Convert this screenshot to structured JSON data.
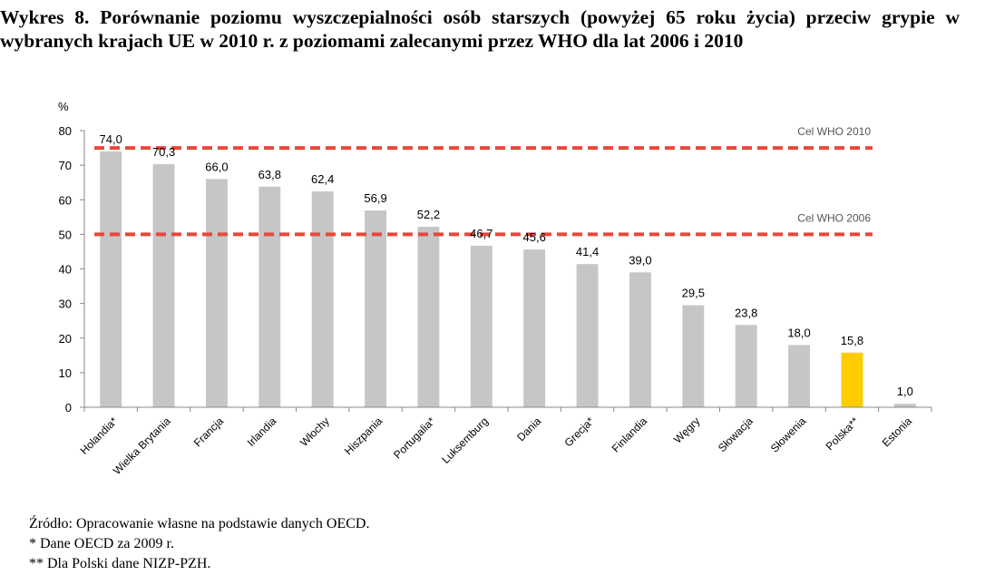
{
  "title": "Wykres 8. Porównanie poziomu wyszczepialności osób starszych (powyżej 65 roku życia) przeciw grypie w wybranych krajach UE w 2010 r. z poziomami zalecanymi przez WHO dla lat 2006 i 2010",
  "chart_data": {
    "type": "bar",
    "title": "",
    "ylabel": "%",
    "xlabel": "",
    "ylim": [
      0,
      80
    ],
    "yticks": [
      "0",
      "10",
      "20",
      "30",
      "40",
      "50",
      "60",
      "70",
      "80"
    ],
    "categories": [
      "Holandia*",
      "Wielka Brytania",
      "Francja",
      "Irlandia",
      "Włochy",
      "Hiszpania",
      "Portugalia*",
      "Luksemburg",
      "Dania",
      "Grecja*",
      "Finlandia",
      "Węgry",
      "Słowacja",
      "Słowenia",
      "Polska**",
      "Estonia"
    ],
    "values": [
      74.0,
      70.3,
      66.0,
      63.8,
      62.4,
      56.9,
      52.2,
      46.7,
      45.6,
      41.4,
      39.0,
      29.5,
      23.8,
      18.0,
      15.8,
      1.0
    ],
    "value_labels": [
      "74,0",
      "70,3",
      "66,0",
      "63,8",
      "62,4",
      "56,9",
      "52,2",
      "46,7",
      "45,6",
      "41,4",
      "39,0",
      "29,5",
      "23,8",
      "18,0",
      "15,8",
      "1,0"
    ],
    "highlight_category": "Polska**",
    "reference_lines": [
      {
        "label": "Cel WHO 2010",
        "value": 75
      },
      {
        "label": "Cel WHO 2006",
        "value": 50
      }
    ],
    "grid": false,
    "legend": "none",
    "colors": {
      "bar": "#c6c6c6",
      "highlight": "#ffcc00",
      "reference": "#e8483b"
    }
  },
  "notes": [
    "Źródło: Opracowanie własne na podstawie danych OECD.",
    "* Dane OECD za 2009 r.",
    "** Dla Polski dane NIZP-PZH."
  ]
}
